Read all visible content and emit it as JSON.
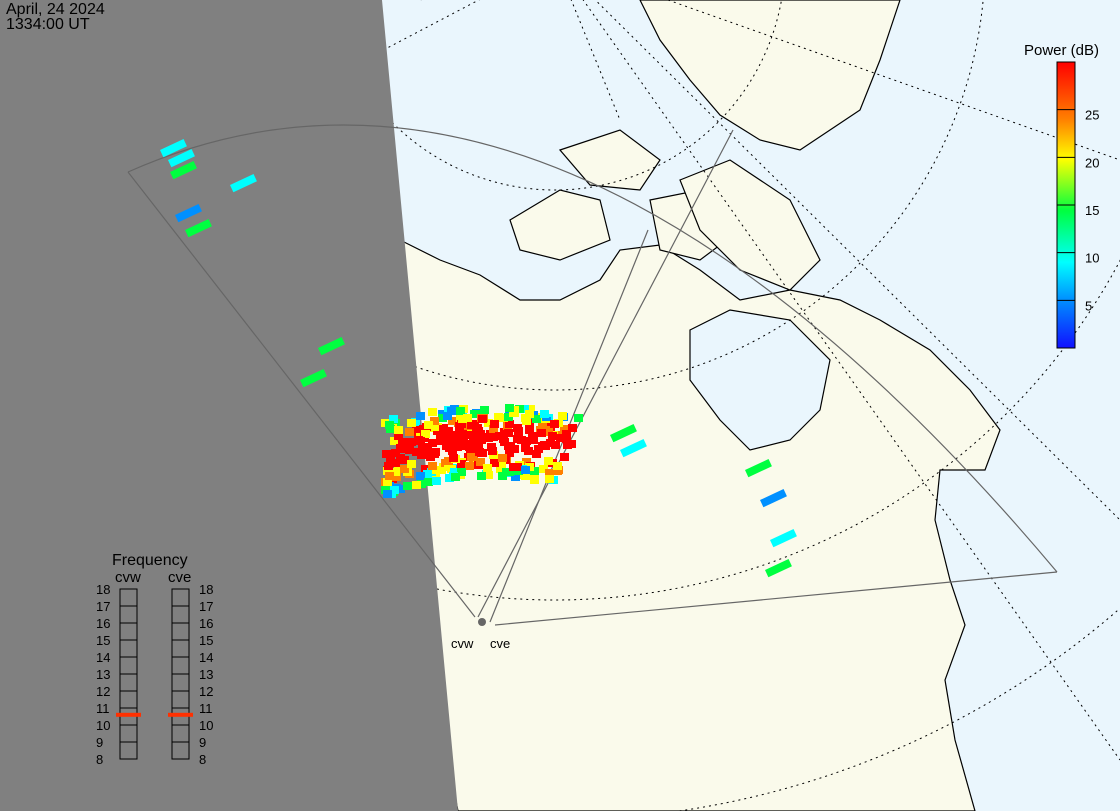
{
  "header": {
    "date": "April, 24 2024",
    "time": "1334:00 UT"
  },
  "colorbar": {
    "title": "Power (dB)",
    "range": [
      0,
      30
    ],
    "ticks": [
      "25",
      "20",
      "15",
      "10",
      "5"
    ],
    "tick_values": [
      25,
      20,
      15,
      10,
      5
    ],
    "colors": [
      "#1010ff",
      "#0090ff",
      "#00ffff",
      "#00ff40",
      "#ffff00",
      "#ff8000",
      "#ff0000"
    ]
  },
  "radars": {
    "west": "cvw",
    "east": "cve"
  },
  "frequency": {
    "title": "Frequency",
    "columns": [
      "cvw",
      "cve"
    ],
    "scale": [
      "18",
      "17",
      "16",
      "15",
      "14",
      "13",
      "12",
      "11",
      "10",
      "9",
      "8"
    ],
    "range_mhz": [
      8,
      18
    ],
    "values_mhz": {
      "cvw": 10.6,
      "cve": 10.6
    },
    "marker_color": "#ff3000"
  },
  "colors": {
    "ocean": "#eaf6fd",
    "land": "#fafaeb",
    "night": "#808080"
  }
}
